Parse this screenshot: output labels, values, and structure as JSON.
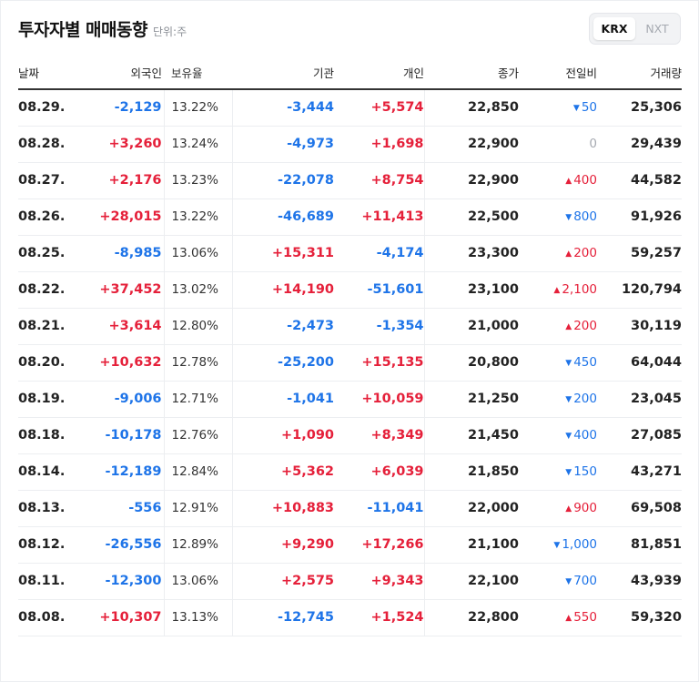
{
  "header": {
    "title": "투자자별 매매동향",
    "unit": "단위:주"
  },
  "market_toggle": {
    "options": [
      "KRX",
      "NXT"
    ],
    "selected": "KRX"
  },
  "table": {
    "columns": [
      "날짜",
      "외국인",
      "보유율",
      "기관",
      "개인",
      "종가",
      "전일비",
      "거래량"
    ],
    "rows": [
      {
        "date": "08.29.",
        "foreign": "-2,129",
        "ratio": "13.22%",
        "inst": "-3,444",
        "indiv": "+5,574",
        "close": "22,850",
        "change_dir": "down",
        "change": "50",
        "volume": "25,306"
      },
      {
        "date": "08.28.",
        "foreign": "+3,260",
        "ratio": "13.24%",
        "inst": "-4,973",
        "indiv": "+1,698",
        "close": "22,900",
        "change_dir": "flat",
        "change": "0",
        "volume": "29,439"
      },
      {
        "date": "08.27.",
        "foreign": "+2,176",
        "ratio": "13.23%",
        "inst": "-22,078",
        "indiv": "+8,754",
        "close": "22,900",
        "change_dir": "up",
        "change": "400",
        "volume": "44,582"
      },
      {
        "date": "08.26.",
        "foreign": "+28,015",
        "ratio": "13.22%",
        "inst": "-46,689",
        "indiv": "+11,413",
        "close": "22,500",
        "change_dir": "down",
        "change": "800",
        "volume": "91,926"
      },
      {
        "date": "08.25.",
        "foreign": "-8,985",
        "ratio": "13.06%",
        "inst": "+15,311",
        "indiv": "-4,174",
        "close": "23,300",
        "change_dir": "up",
        "change": "200",
        "volume": "59,257"
      },
      {
        "date": "08.22.",
        "foreign": "+37,452",
        "ratio": "13.02%",
        "inst": "+14,190",
        "indiv": "-51,601",
        "close": "23,100",
        "change_dir": "up",
        "change": "2,100",
        "volume": "120,794"
      },
      {
        "date": "08.21.",
        "foreign": "+3,614",
        "ratio": "12.80%",
        "inst": "-2,473",
        "indiv": "-1,354",
        "close": "21,000",
        "change_dir": "up",
        "change": "200",
        "volume": "30,119"
      },
      {
        "date": "08.20.",
        "foreign": "+10,632",
        "ratio": "12.78%",
        "inst": "-25,200",
        "indiv": "+15,135",
        "close": "20,800",
        "change_dir": "down",
        "change": "450",
        "volume": "64,044"
      },
      {
        "date": "08.19.",
        "foreign": "-9,006",
        "ratio": "12.71%",
        "inst": "-1,041",
        "indiv": "+10,059",
        "close": "21,250",
        "change_dir": "down",
        "change": "200",
        "volume": "23,045"
      },
      {
        "date": "08.18.",
        "foreign": "-10,178",
        "ratio": "12.76%",
        "inst": "+1,090",
        "indiv": "+8,349",
        "close": "21,450",
        "change_dir": "down",
        "change": "400",
        "volume": "27,085"
      },
      {
        "date": "08.14.",
        "foreign": "-12,189",
        "ratio": "12.84%",
        "inst": "+5,362",
        "indiv": "+6,039",
        "close": "21,850",
        "change_dir": "down",
        "change": "150",
        "volume": "43,271"
      },
      {
        "date": "08.13.",
        "foreign": "-556",
        "ratio": "12.91%",
        "inst": "+10,883",
        "indiv": "-11,041",
        "close": "22,000",
        "change_dir": "up",
        "change": "900",
        "volume": "69,508"
      },
      {
        "date": "08.12.",
        "foreign": "-26,556",
        "ratio": "12.89%",
        "inst": "+9,290",
        "indiv": "+17,266",
        "close": "21,100",
        "change_dir": "down",
        "change": "1,000",
        "volume": "81,851"
      },
      {
        "date": "08.11.",
        "foreign": "-12,300",
        "ratio": "13.06%",
        "inst": "+2,575",
        "indiv": "+9,343",
        "close": "22,100",
        "change_dir": "down",
        "change": "700",
        "volume": "43,939"
      },
      {
        "date": "08.08.",
        "foreign": "+10,307",
        "ratio": "13.13%",
        "inst": "-12,745",
        "indiv": "+1,524",
        "close": "22,800",
        "change_dir": "up",
        "change": "550",
        "volume": "59,320"
      }
    ]
  },
  "colors": {
    "positive": "#e5203a",
    "negative": "#1e74e8",
    "neutral": "#a6aab1"
  },
  "icons": {
    "up": "triangle-up-icon",
    "down": "triangle-down-icon"
  }
}
